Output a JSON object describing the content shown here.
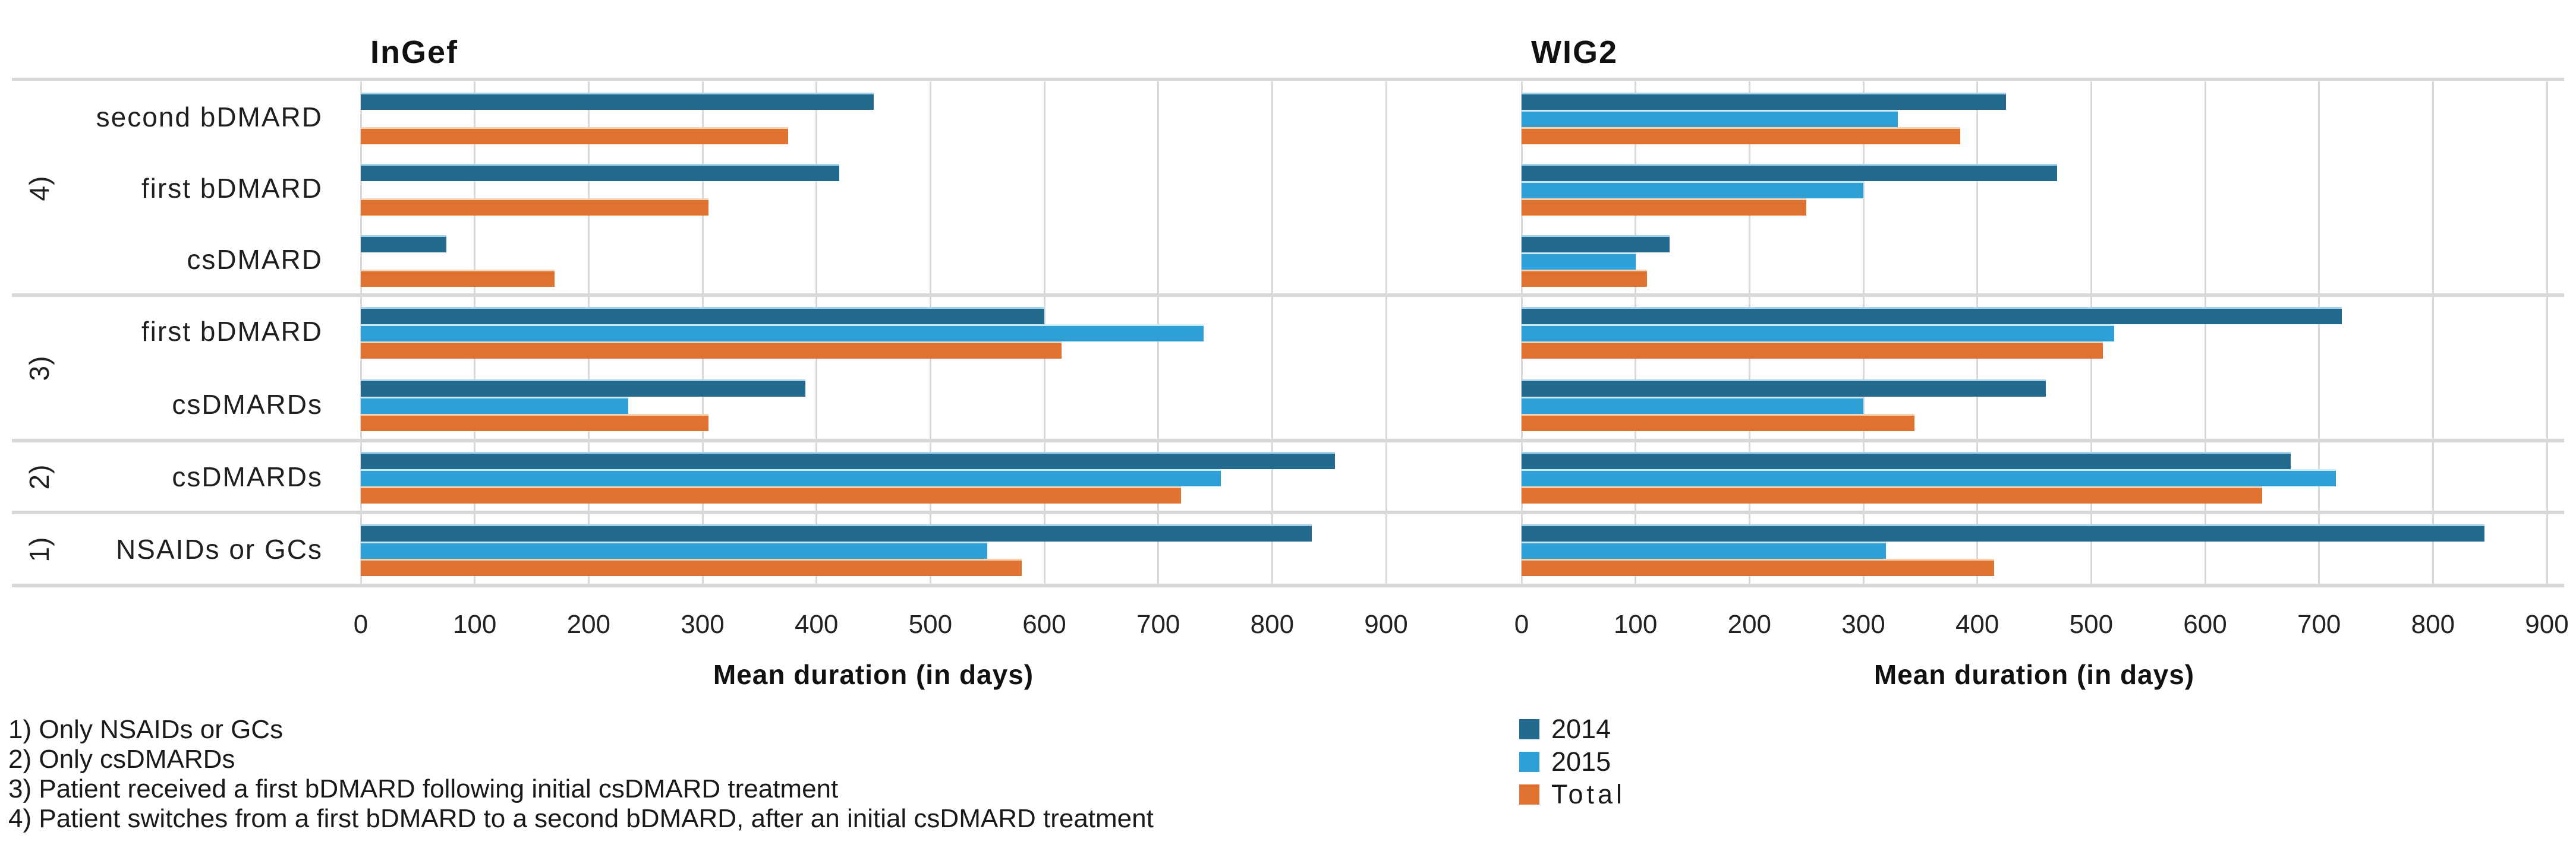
{
  "figure": {
    "legend": [
      {
        "label": "2014",
        "color": "#226B8E"
      },
      {
        "label": "2015",
        "color": "#2FA0D6"
      },
      {
        "label": "Total",
        "color": "#E0722F"
      }
    ],
    "footnotes": [
      "1) Only NSAIDs or GCs",
      "2) Only csDMARDs",
      "3) Patient received a first bDMARD following initial csDMARD treatment",
      "4) Patient switches from a first bDMARD to a second bDMARD, after an initial csDMARD treatment"
    ],
    "colors": {
      "gridline": "#d9d9d9",
      "separator": "#d8d8d8",
      "text": "#1f1f1f"
    }
  },
  "chart_data": {
    "type": "bar",
    "orientation": "horizontal",
    "xlabel": "Mean duration (in days)",
    "xlim": [
      0,
      900
    ],
    "xticks": [
      0,
      100,
      200,
      300,
      400,
      500,
      600,
      700,
      800,
      900
    ],
    "grid": "vertical-on",
    "legend_position": "bottom-center",
    "series_names": [
      "2014",
      "2015",
      "Total"
    ],
    "groups": [
      {
        "id": "4)",
        "categories": [
          "second bDMARD",
          "first bDMARD",
          "csDMARD"
        ]
      },
      {
        "id": "3)",
        "categories": [
          "first bDMARD",
          "csDMARDs"
        ]
      },
      {
        "id": "2)",
        "categories": [
          "csDMARDs"
        ]
      },
      {
        "id": "1)",
        "categories": [
          "NSAIDs or GCs"
        ]
      }
    ],
    "panels": [
      {
        "title": "InGef",
        "rows": [
          {
            "group": "4)",
            "category": "second bDMARD",
            "values": [
              450,
              null,
              375
            ]
          },
          {
            "group": "4)",
            "category": "first bDMARD",
            "values": [
              420,
              null,
              305
            ]
          },
          {
            "group": "4)",
            "category": "csDMARD",
            "values": [
              75,
              null,
              170
            ]
          },
          {
            "group": "3)",
            "category": "first bDMARD",
            "values": [
              600,
              740,
              615
            ]
          },
          {
            "group": "3)",
            "category": "csDMARDs",
            "values": [
              390,
              235,
              305
            ]
          },
          {
            "group": "2)",
            "category": "csDMARDs",
            "values": [
              855,
              755,
              720
            ]
          },
          {
            "group": "1)",
            "category": "NSAIDs or GCs",
            "values": [
              835,
              550,
              580
            ]
          }
        ]
      },
      {
        "title": "WIG2",
        "rows": [
          {
            "group": "4)",
            "category": "second bDMARD",
            "values": [
              425,
              330,
              385
            ]
          },
          {
            "group": "4)",
            "category": "first bDMARD",
            "values": [
              470,
              300,
              250
            ]
          },
          {
            "group": "4)",
            "category": "csDMARD",
            "values": [
              130,
              100,
              110
            ]
          },
          {
            "group": "3)",
            "category": "first bDMARD",
            "values": [
              720,
              520,
              510
            ]
          },
          {
            "group": "3)",
            "category": "csDMARDs",
            "values": [
              460,
              300,
              345
            ]
          },
          {
            "group": "2)",
            "category": "csDMARDs",
            "values": [
              675,
              715,
              650
            ]
          },
          {
            "group": "1)",
            "category": "NSAIDs or GCs",
            "values": [
              845,
              320,
              415
            ]
          }
        ]
      }
    ]
  }
}
